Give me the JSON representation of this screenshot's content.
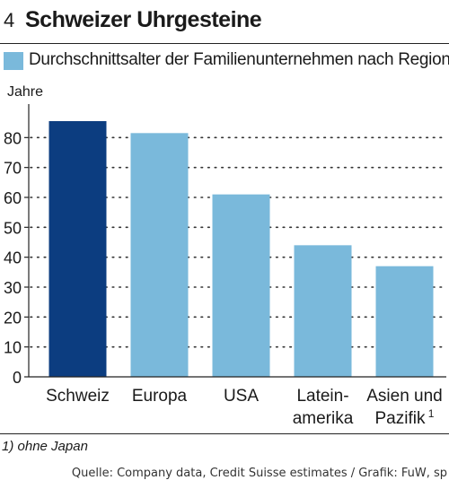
{
  "header": {
    "number": "4",
    "title": "Schweizer Uhrgesteine"
  },
  "legend": {
    "label": "Durchschnittsalter der Familienunternehmen nach Regionen",
    "color": "#7ab9db"
  },
  "chart_data": {
    "type": "bar",
    "ylabel": "Jahre",
    "ylim": [
      0,
      90
    ],
    "yticks": [
      0,
      10,
      20,
      30,
      40,
      50,
      60,
      70,
      80
    ],
    "grid": "dotted horizontal",
    "categories": [
      {
        "lines": [
          "Schweiz"
        ],
        "sup": ""
      },
      {
        "lines": [
          "Europa"
        ],
        "sup": ""
      },
      {
        "lines": [
          "USA"
        ],
        "sup": ""
      },
      {
        "lines": [
          "Latein-",
          "amerika"
        ],
        "sup": ""
      },
      {
        "lines": [
          "Asien und",
          "Pazifik"
        ],
        "sup": "1"
      }
    ],
    "series": [
      {
        "values": [
          85.5,
          81.5,
          61,
          44,
          37
        ]
      }
    ],
    "colors": [
      "#0c3d80",
      "#7ab9db",
      "#7ab9db",
      "#7ab9db",
      "#7ab9db"
    ]
  },
  "footnote": "1) ohne Japan",
  "source": "Quelle: Company data, Credit Suisse estimates / Grafik: FuW, sp"
}
